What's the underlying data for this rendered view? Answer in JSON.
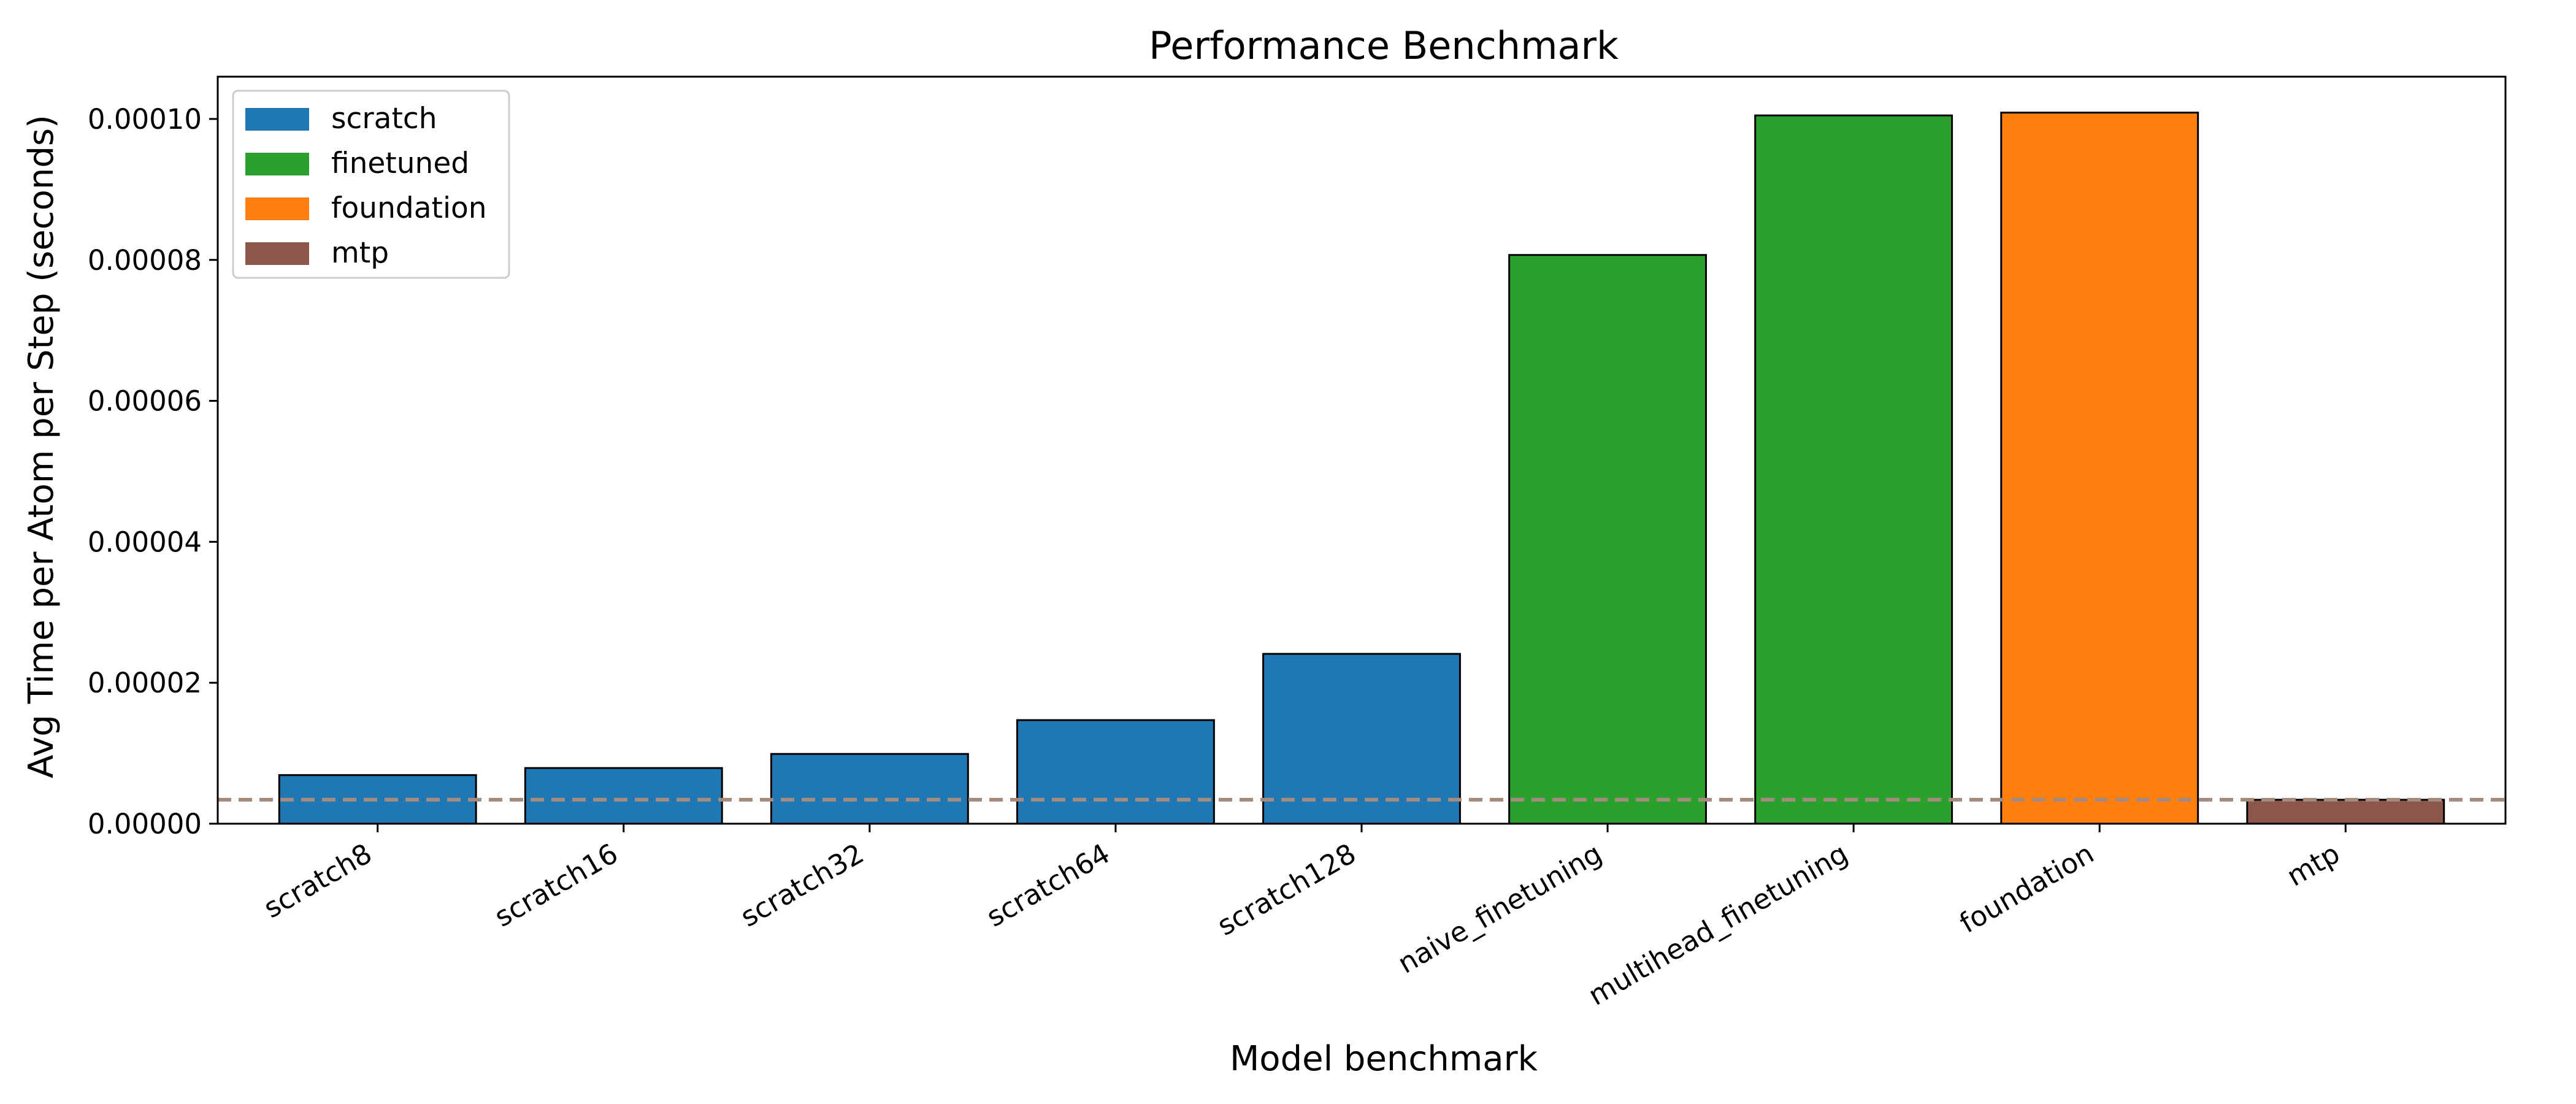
{
  "chart_data": {
    "type": "bar",
    "title": "Performance Benchmark",
    "xlabel": "Model benchmark",
    "ylabel": "Avg Time per Atom per Step (seconds)",
    "ylim": [
      0,
      0.000106
    ],
    "y_ticks": [
      "0.00000",
      "0.00002",
      "0.00004",
      "0.00006",
      "0.00008",
      "0.00010"
    ],
    "y_tick_values": [
      0,
      2e-05,
      4e-05,
      6e-05,
      8e-05,
      0.0001
    ],
    "categories": [
      "scratch8",
      "scratch16",
      "scratch32",
      "scratch64",
      "scratch128",
      "naive_finetuning",
      "multihead_finetuning",
      "foundation",
      "mtp"
    ],
    "values": [
      6.9e-06,
      7.9e-06,
      9.9e-06,
      1.47e-05,
      2.41e-05,
      8.07e-05,
      0.0001005,
      0.0001009,
      3.4e-06
    ],
    "bar_groups": [
      "scratch",
      "scratch",
      "scratch",
      "scratch",
      "scratch",
      "finetuned",
      "finetuned",
      "foundation",
      "mtp"
    ],
    "legend": {
      "placement": "top-left",
      "entries": [
        {
          "name": "scratch",
          "color": "#1f77b4"
        },
        {
          "name": "finetuned",
          "color": "#2ca02c"
        },
        {
          "name": "foundation",
          "color": "#ff7f0e"
        },
        {
          "name": "mtp",
          "color": "#8c564b"
        }
      ]
    },
    "reference_line": {
      "value": 3.4e-06,
      "style": "dashed",
      "color": "#a58a7f"
    },
    "grid": false
  }
}
